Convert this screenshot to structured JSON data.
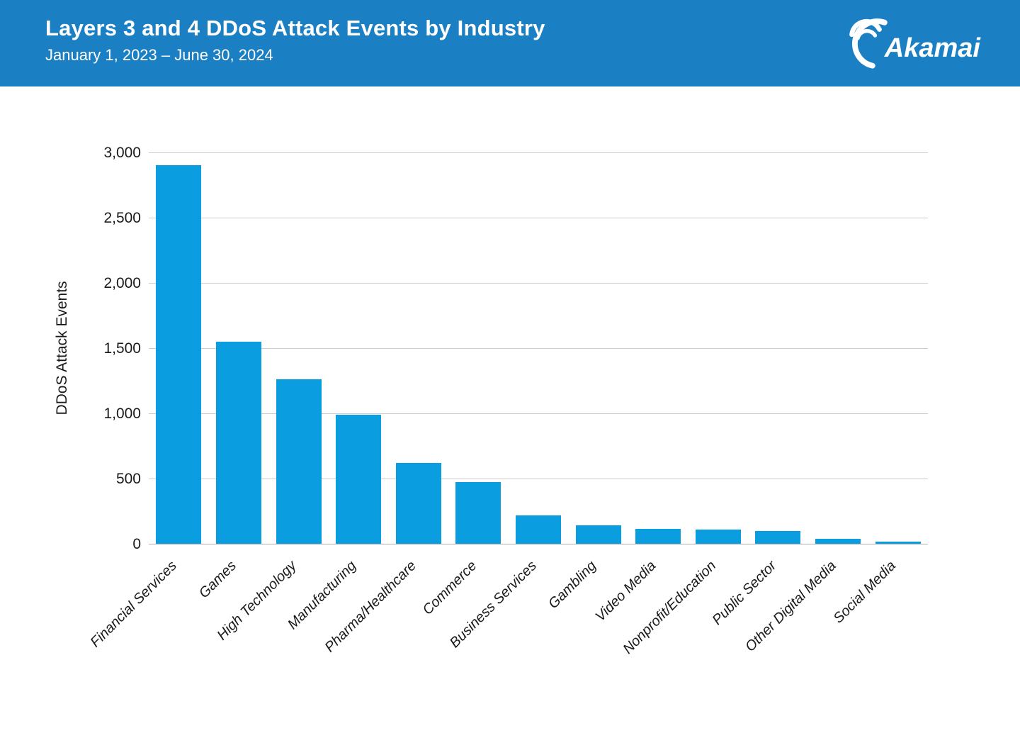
{
  "header": {
    "title": "Layers 3 and 4 DDoS Attack Events by Industry",
    "subtitle": "January 1, 2023 – June 30, 2024",
    "bg_color": "#1B7FC3",
    "logo": {
      "text": "Akamai",
      "icon": "akamai-swoosh-icon",
      "color": "#FFFFFF"
    }
  },
  "chart_data": {
    "type": "bar",
    "title": "Layers 3 and 4 DDoS Attack Events by Industry",
    "subtitle": "January 1, 2023 – June 30, 2024",
    "xlabel": "",
    "ylabel": "DDoS Attack Events",
    "categories": [
      "Financial Services",
      "Games",
      "High Technology",
      "Manufacturing",
      "Pharma/Healthcare",
      "Commerce",
      "Business Services",
      "Gambling",
      "Video Media",
      "Nonprofit/Education",
      "Public Sector",
      "Other Digital Media",
      "Social Media"
    ],
    "values": [
      2900,
      1550,
      1260,
      990,
      620,
      475,
      215,
      140,
      115,
      110,
      100,
      40,
      15
    ],
    "ylim": [
      0,
      3000
    ],
    "ytick_step": 500,
    "ytick_labels": [
      "0",
      "500",
      "1,000",
      "1,500",
      "2,000",
      "2,500",
      "3,000"
    ],
    "grid": true,
    "legend": "none",
    "x_label_rotation_deg": 45,
    "bar_color": "#0A9EE0",
    "gridline_color": "#CCCCCC",
    "baseline_color": "#ADADAD",
    "text_color": "#1A1A1A"
  }
}
